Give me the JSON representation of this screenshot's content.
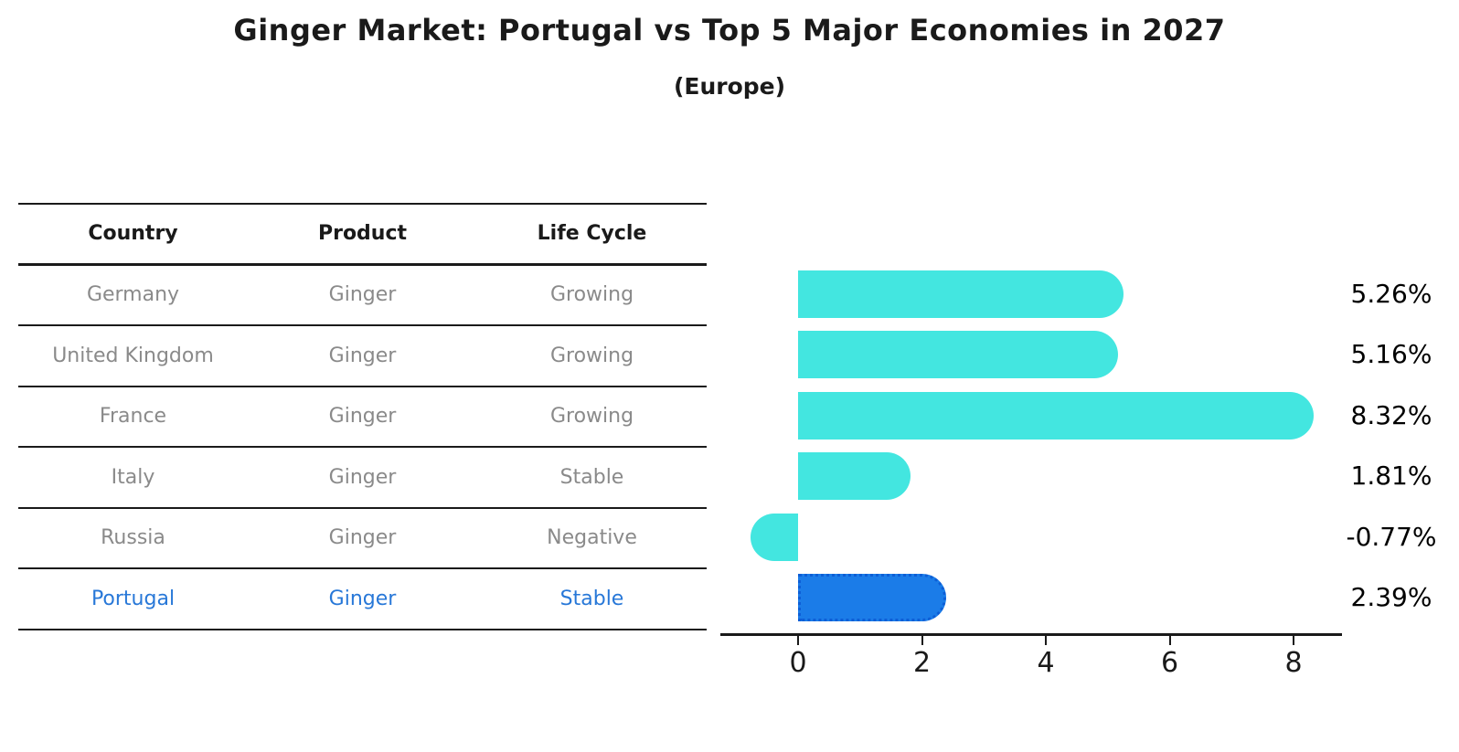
{
  "title": "Ginger Market: Portugal vs Top 5 Major Economies in 2027",
  "subtitle": "(Europe)",
  "table": {
    "headers": [
      "Country",
      "Product",
      "Life Cycle"
    ],
    "rows": [
      {
        "country": "Germany",
        "product": "Ginger",
        "life_cycle": "Growing",
        "highlighted": false
      },
      {
        "country": "United Kingdom",
        "product": "Ginger",
        "life_cycle": "Growing",
        "highlighted": false
      },
      {
        "country": "France",
        "product": "Ginger",
        "life_cycle": "Growing",
        "highlighted": false
      },
      {
        "country": "Italy",
        "product": "Ginger",
        "life_cycle": "Stable",
        "highlighted": false
      },
      {
        "country": "Russia",
        "product": "Ginger",
        "life_cycle": "Negative",
        "highlighted": false
      },
      {
        "country": "Portugal",
        "product": "Ginger",
        "life_cycle": "Stable",
        "highlighted": true
      }
    ]
  },
  "chart_data": {
    "type": "bar",
    "orientation": "horizontal",
    "categories": [
      "Germany",
      "United Kingdom",
      "France",
      "Italy",
      "Russia",
      "Portugal"
    ],
    "values": [
      5.26,
      5.16,
      8.32,
      1.81,
      -0.77,
      2.39
    ],
    "value_labels": [
      "5.26%",
      "5.16%",
      "8.32%",
      "1.81%",
      "-0.77%",
      "2.39%"
    ],
    "x_ticks": [
      0,
      2,
      4,
      6,
      8
    ],
    "xlim": [
      -1.25,
      8.8
    ],
    "grid": false,
    "legend": false,
    "bar_color": "#43e6e0",
    "highlight_color": "#1b7ce8",
    "highlight_border_color": "#0d5ed6",
    "highlight_index": 5
  },
  "colors": {
    "title_text": "#1a1a1a",
    "table_text": "#8a8a8a",
    "highlight_text": "#2878d8",
    "axis": "#1a1a1a"
  }
}
